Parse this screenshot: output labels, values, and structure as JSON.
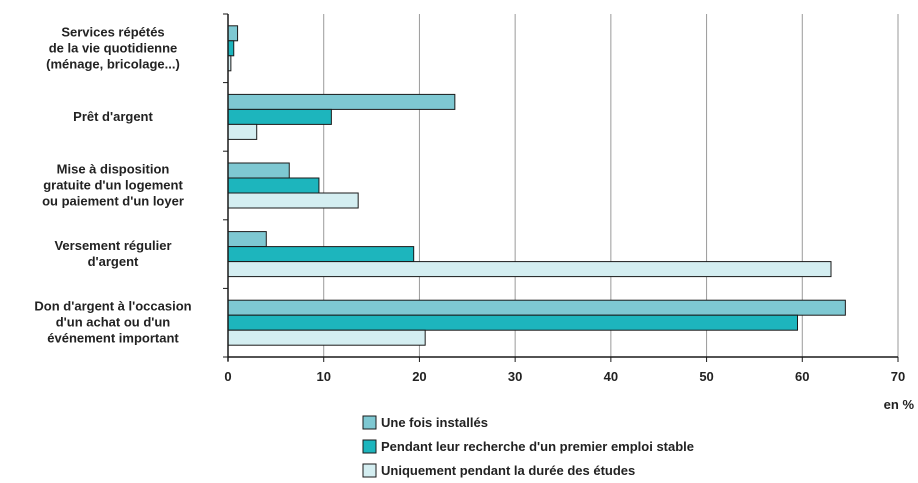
{
  "chart_data": {
    "type": "bar",
    "orientation": "horizontal",
    "categories": [
      [
        "Services répétés",
        "de la vie quotidienne",
        "(ménage, bricolage...)"
      ],
      [
        "Prêt d'argent"
      ],
      [
        "Mise à disposition",
        "gratuite d'un logement",
        "ou paiement d'un loyer"
      ],
      [
        "Versement régulier",
        "d'argent"
      ],
      [
        "Don d'argent à l'occasion",
        "d'un achat ou d'un",
        "événement important"
      ]
    ],
    "series": [
      {
        "name": "Une fois installés",
        "color": "#7ec8d2",
        "values": [
          1.0,
          23.7,
          6.4,
          4.0,
          64.5
        ]
      },
      {
        "name": "Pendant leur recherche d'un premier emploi stable",
        "color": "#1db5bd",
        "values": [
          0.6,
          10.8,
          9.5,
          19.4,
          59.5
        ]
      },
      {
        "name": "Uniquement pendant la durée des études",
        "color": "#d4eef1",
        "values": [
          0.3,
          3.0,
          13.6,
          63.0,
          20.6
        ]
      }
    ],
    "xlim": [
      0,
      70
    ],
    "xticks": [
      0,
      10,
      20,
      30,
      40,
      50,
      60,
      70
    ],
    "xlabel": "en %",
    "grid": true,
    "legend_position": "bottom"
  }
}
